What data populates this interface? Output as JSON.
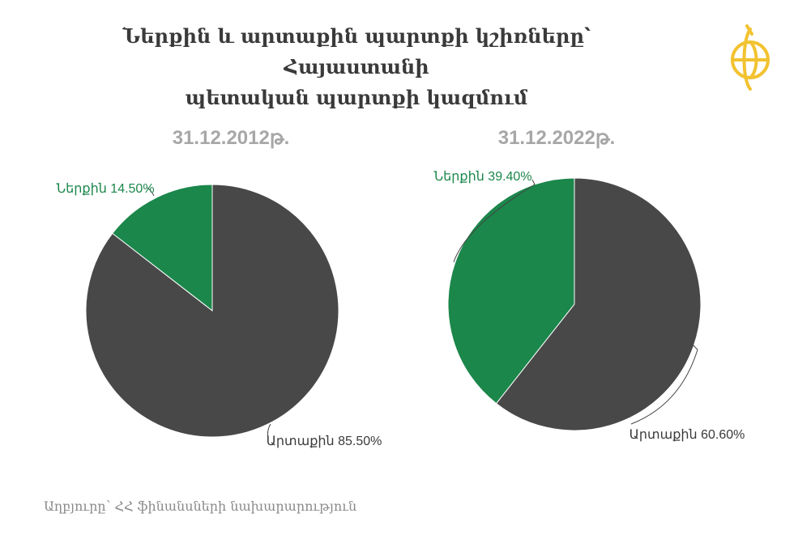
{
  "title": {
    "line1": "Ներքին և արտաքին պարտքի կշիռները՝ Հայաստանի",
    "line2": "պետական պարտքի կազմում"
  },
  "source": "Աղբյուրը՝ ՀՀ ֆինանսների նախարարություն",
  "logo_icon": "globe-emblem-icon",
  "colors": {
    "internal": "#1b874b",
    "external": "#484848",
    "title": "#3a3a3a",
    "subtitle": "#a7a7a7",
    "logo": "#f2c230"
  },
  "chart_data": [
    {
      "type": "pie",
      "title": "31.12.2012թ.",
      "slices": [
        {
          "label": "Ներքին",
          "value": 14.5,
          "display": "Ներքին 14.50%"
        },
        {
          "label": "Արտաքին",
          "value": 85.5,
          "display": "Արտաքին 85.50%"
        }
      ]
    },
    {
      "type": "pie",
      "title": "31.12.2022թ.",
      "slices": [
        {
          "label": "Ներքին",
          "value": 39.4,
          "display": "Ներքին 39.40%"
        },
        {
          "label": "Արտաքին",
          "value": 60.6,
          "display": "Արտաքին 60.60%"
        }
      ]
    }
  ]
}
